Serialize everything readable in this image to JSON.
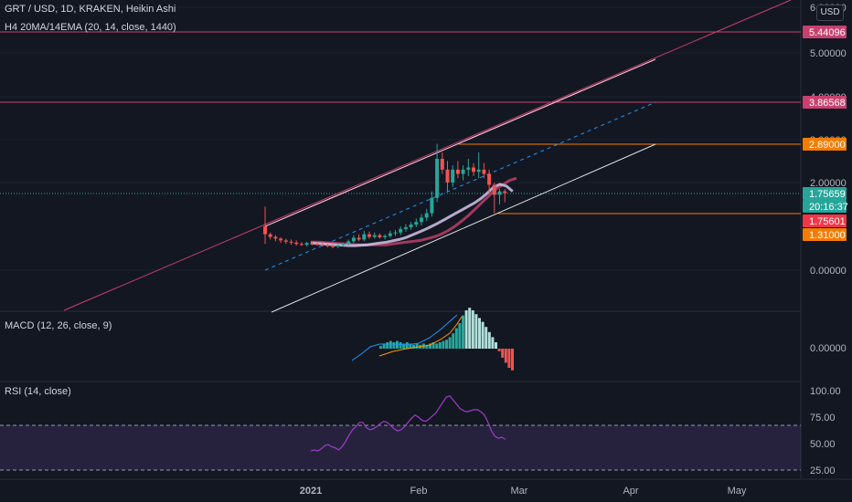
{
  "header": {
    "symbol_line": "GRT / USD, 1D, KRAKEN, Heikin Ashi",
    "indicator_line": "H4 20MA/14EMA (20, 14, close, 1440)",
    "currency_button": "USD"
  },
  "macd": {
    "label": "MACD (12, 26, close, 9)",
    "zero_label": "0.00000"
  },
  "rsi": {
    "label": "RSI (14, close)",
    "ticks": [
      "100.00",
      "75.00",
      "50.00",
      "25.00"
    ],
    "values": [
      43,
      44,
      43,
      45,
      48,
      49,
      47,
      46,
      44,
      47,
      52,
      58,
      63,
      66,
      70,
      70,
      65,
      63,
      64,
      66,
      69,
      71,
      70,
      67,
      64,
      62,
      63,
      66,
      70,
      74,
      77,
      75,
      72,
      71,
      73,
      76,
      79,
      84,
      89,
      94,
      95,
      91,
      87,
      83,
      81,
      80,
      81,
      82,
      82,
      80,
      77,
      70,
      62,
      57,
      55,
      56,
      54
    ]
  },
  "price_axis": {
    "ticks": [
      "6.00000",
      "5.00000",
      "4.00000",
      "3.00000",
      "2.00000",
      "0.00000"
    ],
    "badges": [
      {
        "label": "5.44096",
        "color": "#c8416e"
      },
      {
        "label": "3.86568",
        "color": "#c8416e"
      },
      {
        "label": "2.89000",
        "color": "#f57c00"
      },
      {
        "label": "1.75659",
        "color": "#26a69a"
      },
      {
        "label": "20:16:37",
        "color": "#26a69a"
      },
      {
        "label": "1.75601",
        "color": "#f23645"
      },
      {
        "label": "1.31000",
        "color": "#f57c00"
      }
    ]
  },
  "time_axis": {
    "labels": [
      "2021",
      "Feb",
      "Mar",
      "Apr",
      "May"
    ]
  },
  "chart_data": {
    "type": "candlestick",
    "title": "GRT / USD, 1D, KRAKEN, Heikin Ashi",
    "ohlc": [
      [
        1.0,
        1.45,
        0.6,
        0.82
      ],
      [
        0.82,
        0.86,
        0.7,
        0.76
      ],
      [
        0.76,
        0.8,
        0.66,
        0.72
      ],
      [
        0.72,
        0.75,
        0.62,
        0.68
      ],
      [
        0.68,
        0.72,
        0.6,
        0.65
      ],
      [
        0.65,
        0.7,
        0.58,
        0.63
      ],
      [
        0.63,
        0.68,
        0.56,
        0.6
      ],
      [
        0.6,
        0.64,
        0.55,
        0.58
      ],
      [
        0.58,
        0.65,
        0.54,
        0.62
      ],
      [
        0.62,
        0.66,
        0.57,
        0.6
      ],
      [
        0.6,
        0.64,
        0.56,
        0.58
      ],
      [
        0.58,
        0.62,
        0.54,
        0.57
      ],
      [
        0.57,
        0.6,
        0.52,
        0.55
      ],
      [
        0.55,
        0.59,
        0.5,
        0.54
      ],
      [
        0.54,
        0.6,
        0.5,
        0.57
      ],
      [
        0.57,
        0.63,
        0.53,
        0.6
      ],
      [
        0.6,
        0.7,
        0.56,
        0.66
      ],
      [
        0.66,
        0.8,
        0.62,
        0.74
      ],
      [
        0.74,
        0.82,
        0.66,
        0.7
      ],
      [
        0.7,
        0.9,
        0.66,
        0.82
      ],
      [
        0.82,
        0.88,
        0.72,
        0.76
      ],
      [
        0.76,
        0.86,
        0.72,
        0.8
      ],
      [
        0.8,
        0.84,
        0.72,
        0.75
      ],
      [
        0.75,
        0.82,
        0.7,
        0.78
      ],
      [
        0.78,
        0.9,
        0.74,
        0.84
      ],
      [
        0.84,
        0.92,
        0.78,
        0.86
      ],
      [
        0.86,
        1.0,
        0.8,
        0.94
      ],
      [
        0.94,
        1.05,
        0.88,
        0.98
      ],
      [
        0.98,
        1.1,
        0.92,
        1.04
      ],
      [
        1.04,
        1.18,
        0.98,
        1.1
      ],
      [
        1.1,
        1.28,
        1.02,
        1.2
      ],
      [
        1.2,
        1.4,
        1.12,
        1.3
      ],
      [
        1.3,
        1.8,
        1.22,
        1.65
      ],
      [
        1.65,
        2.9,
        1.55,
        2.55
      ],
      [
        2.55,
        2.7,
        2.2,
        2.3
      ],
      [
        2.3,
        2.5,
        1.8,
        2.0
      ],
      [
        2.0,
        2.4,
        1.9,
        2.3
      ],
      [
        2.3,
        2.5,
        2.1,
        2.2
      ],
      [
        2.2,
        2.4,
        2.05,
        2.3
      ],
      [
        2.3,
        2.55,
        2.15,
        2.35
      ],
      [
        2.35,
        2.45,
        2.15,
        2.25
      ],
      [
        2.25,
        2.7,
        2.1,
        2.3
      ],
      [
        2.3,
        2.45,
        2.1,
        2.2
      ],
      [
        2.2,
        2.3,
        1.75,
        1.95
      ],
      [
        1.95,
        2.0,
        1.3,
        1.72
      ],
      [
        1.72,
        1.85,
        1.5,
        1.8
      ],
      [
        1.8,
        1.85,
        1.55,
        1.76
      ]
    ],
    "ma20": [
      0.64,
      0.64,
      0.63,
      0.62,
      0.61,
      0.6,
      0.59,
      0.58,
      0.58,
      0.58,
      0.58,
      0.58,
      0.6,
      0.62,
      0.64,
      0.66,
      0.68,
      0.72,
      0.76,
      0.82,
      0.9,
      1.0,
      1.12,
      1.25,
      1.4,
      1.55,
      1.7,
      1.85,
      1.95,
      2.05,
      2.1
    ],
    "ema14": [
      0.62,
      0.61,
      0.6,
      0.59,
      0.58,
      0.57,
      0.56,
      0.56,
      0.57,
      0.58,
      0.6,
      0.62,
      0.64,
      0.67,
      0.7,
      0.74,
      0.8,
      0.86,
      0.92,
      0.99,
      1.06,
      1.14,
      1.22,
      1.3,
      1.38,
      1.46,
      1.54,
      1.64,
      1.76,
      1.9,
      1.96,
      1.92,
      1.8
    ],
    "macd_hist": [
      0.02,
      0.04,
      0.05,
      0.06,
      0.05,
      0.06,
      0.05,
      0.04,
      0.05,
      0.04,
      0.03,
      0.04,
      0.03,
      0.04,
      0.03,
      0.04,
      0.05,
      0.04,
      0.05,
      0.06,
      0.07,
      0.09,
      0.12,
      0.16,
      0.2,
      0.26,
      0.3,
      0.32,
      0.3,
      0.27,
      0.24,
      0.21,
      0.17,
      0.13,
      0.09,
      0.05,
      -0.02,
      -0.07,
      -0.11,
      -0.15,
      -0.17
    ],
    "horizontal_levels": [
      5.44096,
      3.86568,
      2.89,
      1.75659,
      1.31
    ],
    "y_axis_ticks": [
      6.0,
      5.0,
      4.0,
      3.0,
      2.0,
      0.0
    ]
  }
}
